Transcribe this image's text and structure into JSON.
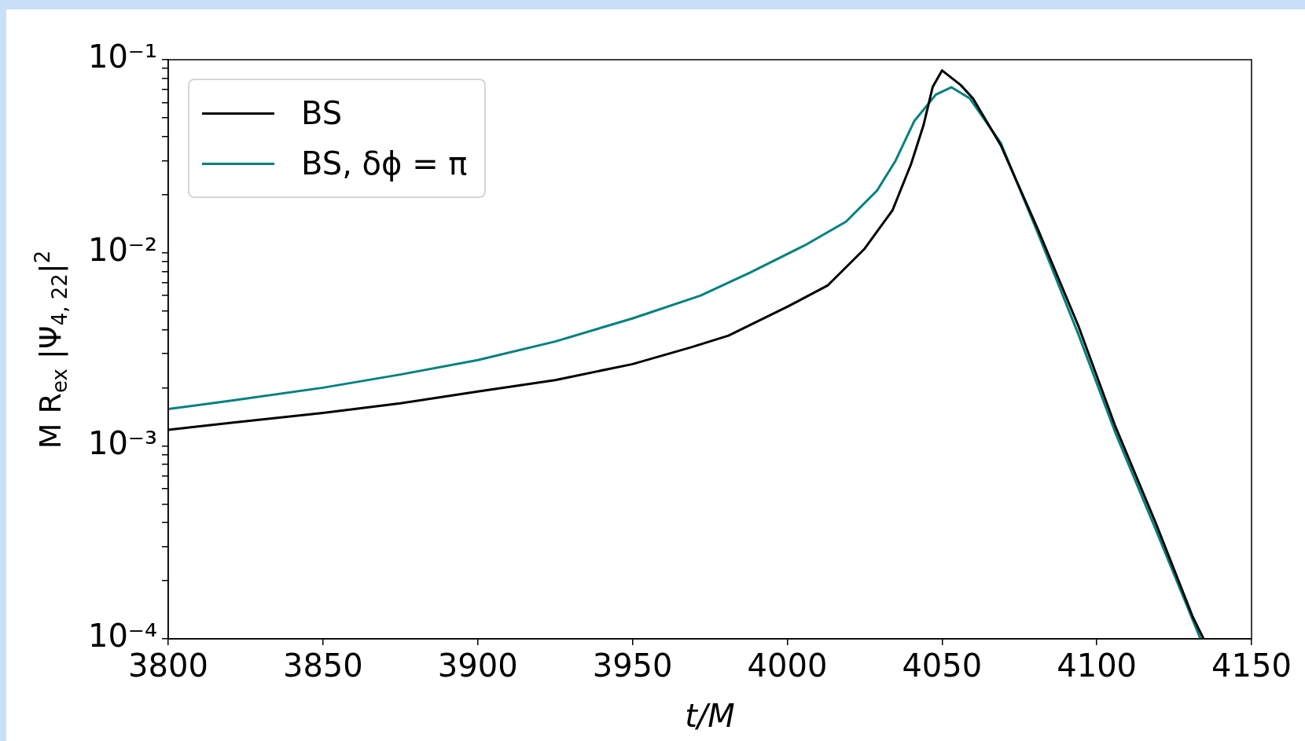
{
  "chart_data": {
    "type": "line",
    "xlabel": "t/M",
    "ylabel": "M R$_{ex}$ |Ψ$_{4, 22}$|$^{2}$",
    "log": "y",
    "grid": false,
    "legend": "top left",
    "line_style": "solid",
    "xlim": [
      3800,
      4150
    ],
    "xticks": [
      3800,
      3850,
      3900,
      3950,
      4000,
      4050,
      4100,
      4150
    ],
    "ylim": [
      0.0001,
      0.1
    ],
    "yticks": [
      {
        "value": 0.0001,
        "label": "10⁻⁴"
      },
      {
        "value": 0.0002,
        "label": null
      },
      {
        "value": 0.0003,
        "label": null
      },
      {
        "value": 0.0004,
        "label": null
      },
      {
        "value": 0.0005,
        "label": null
      },
      {
        "value": 0.0006,
        "label": null
      },
      {
        "value": 0.0007,
        "label": null
      },
      {
        "value": 0.0008,
        "label": null
      },
      {
        "value": 0.0009,
        "label": null
      },
      {
        "value": 0.001,
        "label": "10⁻³"
      },
      {
        "value": 0.002,
        "label": null
      },
      {
        "value": 0.003,
        "label": null
      },
      {
        "value": 0.004,
        "label": null
      },
      {
        "value": 0.005,
        "label": null
      },
      {
        "value": 0.006,
        "label": null
      },
      {
        "value": 0.007,
        "label": null
      },
      {
        "value": 0.008,
        "label": null
      },
      {
        "value": 0.009,
        "label": null
      },
      {
        "value": 0.01,
        "label": "10⁻²"
      },
      {
        "value": 0.02,
        "label": null
      },
      {
        "value": 0.03,
        "label": null
      },
      {
        "value": 0.04,
        "label": null
      },
      {
        "value": 0.05,
        "label": null
      },
      {
        "value": 0.06,
        "label": null
      },
      {
        "value": 0.07,
        "label": null
      },
      {
        "value": 0.08,
        "label": null
      },
      {
        "value": 0.09,
        "label": null
      },
      {
        "value": 0.1,
        "label": "10⁻¹"
      }
    ],
    "series": [
      {
        "name": "BS",
        "color": "#000000",
        "x": [
          3800,
          3821,
          3850,
          3875,
          3900,
          3925,
          3950,
          3969,
          3981,
          4000,
          4013,
          4025,
          4034,
          4040,
          4044,
          4047,
          4050,
          4056,
          4060,
          4069,
          4081,
          4094,
          4106,
          4119,
          4131,
          4134.5
        ],
        "values": [
          0.00121,
          0.00132,
          0.00148,
          0.00166,
          0.00191,
          0.00219,
          0.00265,
          0.00324,
          0.00372,
          0.00525,
          0.00676,
          0.0105,
          0.0166,
          0.0288,
          0.0457,
          0.0724,
          0.088,
          0.074,
          0.063,
          0.036,
          0.0132,
          0.0042,
          0.00126,
          0.0004,
          0.00013,
          0.0001
        ]
      },
      {
        "name": "BS, δϕ = π",
        "color": "#008080",
        "x": [
          3800,
          3821,
          3850,
          3875,
          3900,
          3925,
          3950,
          3972,
          3988,
          4006,
          4019,
          4029,
          4035,
          4041,
          4048,
          4053,
          4059,
          4069,
          4081,
          4094,
          4106,
          4119,
          4133.5
        ],
        "values": [
          0.00155,
          0.00172,
          0.002,
          0.00234,
          0.00278,
          0.00347,
          0.00457,
          0.006,
          0.0079,
          0.011,
          0.0145,
          0.021,
          0.03,
          0.048,
          0.066,
          0.072,
          0.063,
          0.037,
          0.0126,
          0.0038,
          0.00117,
          0.00037,
          0.0001
        ]
      }
    ]
  }
}
